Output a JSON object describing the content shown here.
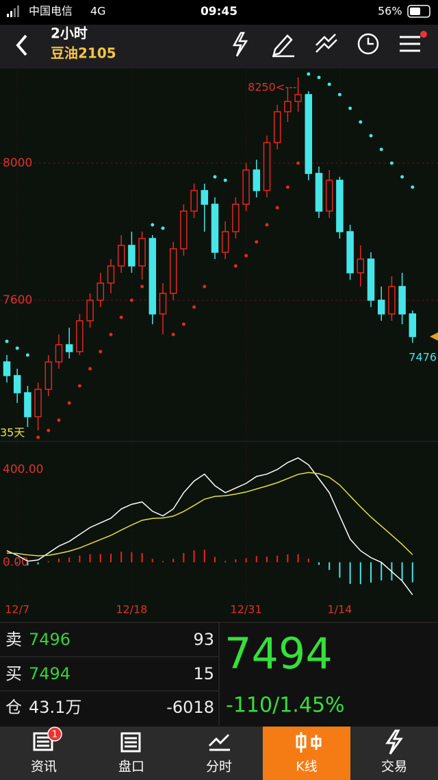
{
  "status_bar": {
    "carrier": "中国电信",
    "network": "4G",
    "time": "09:45",
    "battery": "56%"
  },
  "header": {
    "title": "2小时",
    "subtitle": "豆油2105"
  },
  "chart_data": [
    {
      "type": "candlestick",
      "categories": [
        null,
        "12/7",
        null,
        null,
        null,
        null,
        null,
        null,
        null,
        null,
        null,
        null,
        "12/18",
        null,
        null,
        null,
        null,
        null,
        null,
        null,
        null,
        null,
        null,
        "12/31",
        null,
        null,
        null,
        null,
        null,
        null,
        null,
        null,
        "1/14",
        null,
        null,
        null,
        null,
        null,
        null,
        null
      ],
      "open": [
        7420,
        7380,
        7330,
        7260,
        7340,
        7420,
        7470,
        7450,
        7540,
        7600,
        7650,
        7700,
        7760,
        7700,
        7780,
        7560,
        7620,
        7750,
        7860,
        7920,
        7880,
        7740,
        7800,
        7880,
        7980,
        7920,
        8060,
        8150,
        8180,
        8200,
        7970,
        7860,
        7950,
        7800,
        7680,
        7720,
        7600,
        7560,
        7640,
        7560
      ],
      "close": [
        7380,
        7330,
        7260,
        7340,
        7420,
        7470,
        7450,
        7540,
        7600,
        7650,
        7700,
        7760,
        7700,
        7780,
        7560,
        7620,
        7750,
        7860,
        7920,
        7880,
        7740,
        7800,
        7880,
        7980,
        7920,
        8060,
        8150,
        8180,
        8200,
        7970,
        7860,
        7950,
        7800,
        7680,
        7720,
        7600,
        7560,
        7640,
        7560,
        7494
      ],
      "high": [
        7440,
        7400,
        7350,
        7360,
        7440,
        7500,
        7520,
        7560,
        7620,
        7680,
        7720,
        7790,
        7800,
        7800,
        7790,
        7650,
        7770,
        7880,
        7940,
        7940,
        7900,
        7830,
        7900,
        8000,
        8010,
        8080,
        8170,
        8220,
        8250,
        8210,
        7990,
        7980,
        7960,
        7820,
        7760,
        7740,
        7640,
        7670,
        7680,
        7570
      ],
      "low": [
        7360,
        7300,
        7230,
        7220,
        7320,
        7400,
        7430,
        7440,
        7520,
        7580,
        7620,
        7680,
        7680,
        7660,
        7530,
        7500,
        7600,
        7730,
        7840,
        7800,
        7720,
        7720,
        7780,
        7860,
        7900,
        7900,
        8040,
        8120,
        8150,
        7950,
        7840,
        7840,
        7780,
        7660,
        7640,
        7580,
        7540,
        7540,
        7530,
        7476
      ],
      "sar": [
        7480,
        7460,
        7440,
        7200,
        7220,
        7250,
        7300,
        7350,
        7400,
        7450,
        7500,
        7550,
        7600,
        7640,
        7820,
        7810,
        7500,
        7530,
        7580,
        7640,
        7960,
        7950,
        7700,
        7730,
        7770,
        7820,
        7870,
        7930,
        8000,
        8260,
        8250,
        8230,
        8200,
        8160,
        8120,
        8080,
        8040,
        8000,
        7960,
        7930
      ],
      "ylim": [
        7196,
        8276
      ],
      "yticks": [
        7600,
        8000
      ],
      "grid": true,
      "high_label": "8250<---",
      "low_label": "7476",
      "period_label": "35天"
    },
    {
      "type": "macd",
      "dif": [
        50,
        30,
        5,
        10,
        40,
        70,
        90,
        120,
        150,
        170,
        190,
        230,
        250,
        260,
        220,
        200,
        230,
        300,
        350,
        380,
        330,
        300,
        320,
        340,
        370,
        380,
        400,
        430,
        450,
        420,
        360,
        300,
        200,
        100,
        50,
        20,
        0,
        -40,
        -80,
        -140
      ],
      "dea": [
        40,
        38,
        32,
        28,
        30,
        38,
        48,
        62,
        80,
        98,
        116,
        139,
        161,
        181,
        189,
        191,
        199,
        219,
        245,
        272,
        284,
        287,
        294,
        303,
        316,
        329,
        343,
        361,
        379,
        387,
        382,
        366,
        333,
        286,
        239,
        195,
        156,
        117,
        77,
        33
      ],
      "hist": [
        5,
        -4,
        -13,
        -9,
        5,
        16,
        21,
        29,
        35,
        36,
        37,
        45,
        44,
        40,
        15,
        5,
        15,
        40,
        52,
        54,
        23,
        6,
        13,
        18,
        27,
        25,
        28,
        34,
        35,
        16,
        -11,
        -33,
        -66,
        -93,
        -94,
        -87,
        -78,
        -78,
        -78,
        -86
      ],
      "ylim": [
        -176,
        515
      ],
      "yticks": [
        {
          "value": 0,
          "label": "0.00"
        },
        {
          "value": 400,
          "label": "400.00"
        }
      ],
      "grid": false
    }
  ],
  "quote": {
    "sell_label": "卖",
    "sell_price": 7496,
    "sell_volume": 93,
    "buy_label": "买",
    "buy_price": 7494,
    "buy_volume": 15,
    "oi_label": "仓",
    "oi": "43.1万",
    "oi_change": -6018,
    "last_price": 7494,
    "change": "-110/1.45%"
  },
  "tabs": [
    {
      "label": "资讯",
      "badge": 1
    },
    {
      "label": "盘口"
    },
    {
      "label": "分时"
    },
    {
      "label": "K线"
    },
    {
      "label": "交易"
    }
  ]
}
